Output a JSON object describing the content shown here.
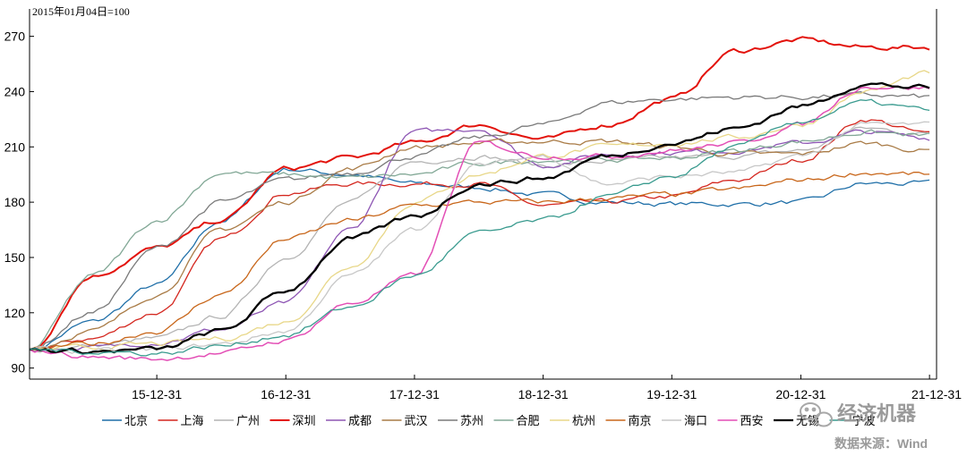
{
  "chart_data": {
    "type": "line",
    "unit_note": "2015年01月04日=100",
    "title": "",
    "xlabel": "",
    "ylabel": "",
    "x_ticks": [
      "15-12-31",
      "16-12-31",
      "17-12-31",
      "18-12-31",
      "19-12-31",
      "20-12-31",
      "21-12-31"
    ],
    "y_ticks": [
      90,
      120,
      150,
      180,
      210,
      240,
      270
    ],
    "ylim": [
      84,
      280
    ],
    "xlim": [
      "2015-01-04",
      "2022-01-20"
    ],
    "grid": false,
    "legend_position": "bottom",
    "x_dates": [
      "2015-01-04",
      "2015-06-30",
      "2015-12-31",
      "2016-06-30",
      "2016-12-31",
      "2017-06-30",
      "2017-12-31",
      "2018-06-30",
      "2018-12-31",
      "2019-06-30",
      "2019-12-31",
      "2020-06-30",
      "2020-12-31",
      "2021-06-30",
      "2021-12-31"
    ],
    "series": [
      {
        "name": "北京",
        "color": "#1f6fa8",
        "width": 1.3,
        "values": [
          100,
          115,
          135,
          170,
          198,
          195,
          190,
          188,
          184,
          180,
          179,
          179,
          180,
          190,
          190
        ]
      },
      {
        "name": "上海",
        "color": "#d4261e",
        "width": 1.3,
        "values": [
          100,
          106,
          120,
          160,
          185,
          190,
          190,
          190,
          178,
          180,
          183,
          192,
          203,
          225,
          217
        ]
      },
      {
        "name": "广州",
        "color": "#b4b4b4",
        "width": 1.3,
        "values": [
          100,
          102,
          106,
          118,
          150,
          180,
          202,
          205,
          200,
          202,
          204,
          205,
          208,
          220,
          217
        ]
      },
      {
        "name": "深圳",
        "color": "#e3120b",
        "width": 2.0,
        "values": [
          100,
          140,
          155,
          170,
          198,
          204,
          212,
          222,
          214,
          222,
          236,
          262,
          268,
          264,
          264
        ]
      },
      {
        "name": "成都",
        "color": "#8e56b4",
        "width": 1.3,
        "values": [
          100,
          101,
          104,
          111,
          125,
          165,
          218,
          220,
          200,
          206,
          207,
          208,
          212,
          218,
          215
        ]
      },
      {
        "name": "武汉",
        "color": "#a97b46",
        "width": 1.3,
        "values": [
          100,
          110,
          130,
          165,
          180,
          198,
          210,
          212,
          213,
          213,
          210,
          206,
          206,
          212,
          208
        ]
      },
      {
        "name": "苏州",
        "color": "#7a7a7a",
        "width": 1.3,
        "values": [
          100,
          120,
          155,
          180,
          192,
          196,
          205,
          215,
          222,
          234,
          236,
          237,
          237,
          238,
          237
        ]
      },
      {
        "name": "合肥",
        "color": "#82a896",
        "width": 1.3,
        "values": [
          100,
          140,
          170,
          196,
          195,
          193,
          195,
          201,
          203,
          203,
          204,
          208,
          213,
          218,
          216
        ]
      },
      {
        "name": "杭州",
        "color": "#e8d788",
        "width": 1.3,
        "values": [
          100,
          101,
          103,
          106,
          115,
          145,
          180,
          195,
          205,
          210,
          212,
          215,
          222,
          240,
          250
        ]
      },
      {
        "name": "南京",
        "color": "#c8661a",
        "width": 1.3,
        "values": [
          100,
          103,
          110,
          130,
          160,
          170,
          178,
          180,
          180,
          182,
          184,
          187,
          192,
          196,
          195
        ]
      },
      {
        "name": "海口",
        "color": "#c7c7c7",
        "width": 1.3,
        "values": [
          100,
          99,
          100,
          103,
          110,
          140,
          165,
          200,
          205,
          190,
          194,
          196,
          205,
          222,
          222
        ]
      },
      {
        "name": "西安",
        "color": "#e34fb6",
        "width": 1.5,
        "values": [
          100,
          96,
          95,
          98,
          105,
          125,
          140,
          212,
          205,
          205,
          208,
          212,
          222,
          243,
          242
        ]
      },
      {
        "name": "无锡",
        "color": "#000000",
        "width": 2.3,
        "values": [
          100,
          99,
          100,
          110,
          132,
          160,
          172,
          190,
          193,
          205,
          212,
          220,
          232,
          244,
          242
        ]
      },
      {
        "name": "宁波",
        "color": "#3a9b8f",
        "width": 1.3,
        "values": [
          100,
          99,
          98,
          102,
          108,
          123,
          140,
          163,
          170,
          183,
          194,
          210,
          224,
          234,
          230
        ]
      }
    ]
  },
  "watermark": {
    "text": "经济机器",
    "source": "数据来源：Wind"
  },
  "icons": {
    "watermark_icon": "wechat-icon"
  }
}
